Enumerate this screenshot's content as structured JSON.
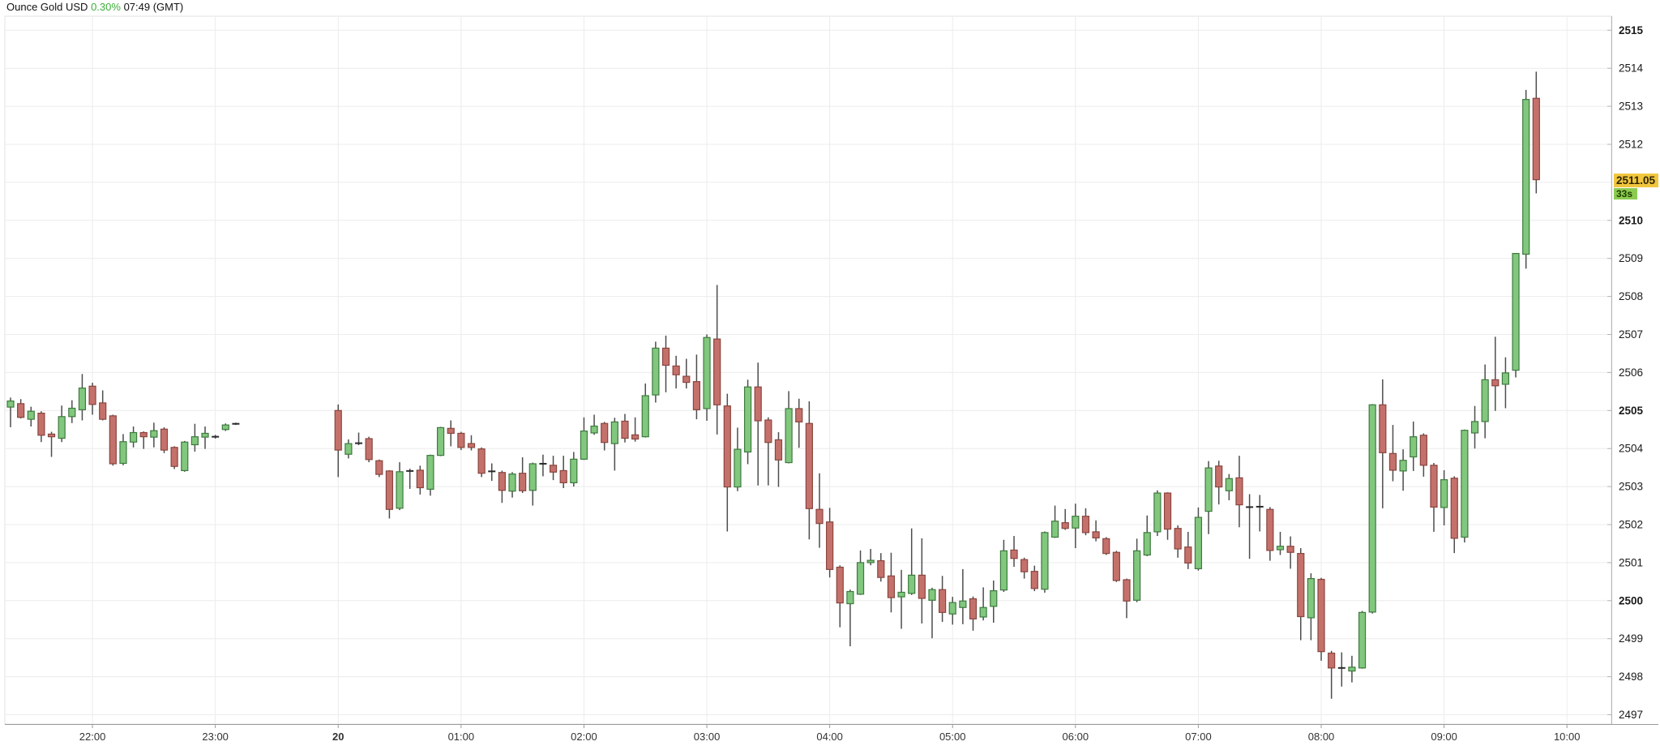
{
  "header": {
    "instrument": "Ounce Gold USD",
    "change_percent": "0.30%",
    "time": "07:49 (GMT)"
  },
  "price_axis": {
    "labels": [
      2515,
      2514,
      2513,
      2512,
      2510,
      2509,
      2508,
      2507,
      2506,
      2505,
      2504,
      2503,
      2502,
      2501,
      2500,
      2499,
      2498,
      2497
    ],
    "bold_labels": [
      2515,
      2510,
      2505,
      2500
    ],
    "grid_levels": [
      2497,
      2498,
      2499,
      2500,
      2501,
      2502,
      2503,
      2504,
      2505,
      2506,
      2507,
      2508,
      2509,
      2510,
      2511,
      2512,
      2513,
      2514,
      2515
    ],
    "current_price_label": "2511.05",
    "current_price": 2511.05,
    "countdown_label": "33s"
  },
  "time_axis": {
    "labels": [
      {
        "time": "22:00",
        "label": "22:00",
        "bold": false
      },
      {
        "time": "23:00",
        "label": "23:00",
        "bold": false
      },
      {
        "time": "00:00",
        "label": "20",
        "bold": true
      },
      {
        "time": "01:00",
        "label": "01:00",
        "bold": false
      },
      {
        "time": "02:00",
        "label": "02:00",
        "bold": false
      },
      {
        "time": "03:00",
        "label": "03:00",
        "bold": false
      },
      {
        "time": "04:00",
        "label": "04:00",
        "bold": false
      },
      {
        "time": "05:00",
        "label": "05:00",
        "bold": false
      },
      {
        "time": "06:00",
        "label": "06:00",
        "bold": false
      },
      {
        "time": "07:00",
        "label": "07:00",
        "bold": false
      },
      {
        "time": "08:00",
        "label": "08:00",
        "bold": false
      },
      {
        "time": "09:00",
        "label": "09:00",
        "bold": false
      },
      {
        "time": "10:00",
        "label": "10:00",
        "bold": false
      }
    ]
  },
  "colors": {
    "up_fill": "#81c77e",
    "up_stroke": "#3f7a3f",
    "down_fill": "#c5716b",
    "down_stroke": "#8a453f",
    "wick": "#4d4d4d",
    "doji": "#2a2a2a",
    "grid": "#ececec",
    "frame": "#e3e3e3",
    "axis_line": "#b5b5b5",
    "bottom_axis": "#9a9a9a",
    "price_label": "#1a1a1a",
    "time_label": "#333333",
    "badge_price_bg": "#f1c63d",
    "badge_price_text": "#2e2500",
    "badge_countdown_bg": "#8bcb50",
    "badge_countdown_text": "#1d3d00",
    "title_change": "#3daf3a"
  },
  "chart_data": {
    "type": "candlestick",
    "title": "Ounce Gold USD 5-minute candles",
    "ylim": [
      2496.7,
      2515.4
    ],
    "x_start": "21:20",
    "x_end": "10:00",
    "interval_minutes": 5,
    "session_gap": {
      "after": "23:10",
      "resume": "00:00"
    },
    "candles": [
      [
        "21:20",
        2505.09,
        2505.34,
        2504.56,
        2505.25
      ],
      [
        "21:25",
        2505.18,
        2505.3,
        2504.79,
        2504.82
      ],
      [
        "21:30",
        2504.77,
        2505.1,
        2504.58,
        2504.98
      ],
      [
        "21:35",
        2504.93,
        2504.98,
        2504.17,
        2504.35
      ],
      [
        "21:40",
        2504.38,
        2504.44,
        2503.78,
        2504.31
      ],
      [
        "21:45",
        2504.27,
        2505.13,
        2504.17,
        2504.84
      ],
      [
        "21:50",
        2504.84,
        2505.27,
        2504.67,
        2505.06
      ],
      [
        "21:55",
        2505.02,
        2505.96,
        2504.74,
        2505.59
      ],
      [
        "22:00",
        2505.64,
        2505.73,
        2504.89,
        2505.16
      ],
      [
        "22:05",
        2505.2,
        2505.53,
        2504.74,
        2504.77
      ],
      [
        "22:10",
        2504.86,
        2504.89,
        2503.55,
        2503.6
      ],
      [
        "22:15",
        2503.61,
        2504.38,
        2503.56,
        2504.18
      ],
      [
        "22:20",
        2504.17,
        2504.58,
        2504.03,
        2504.42
      ],
      [
        "22:25",
        2504.42,
        2504.45,
        2503.99,
        2504.31
      ],
      [
        "22:30",
        2504.3,
        2504.68,
        2504.03,
        2504.47
      ],
      [
        "22:35",
        2504.51,
        2504.56,
        2503.88,
        2503.96
      ],
      [
        "22:40",
        2504.03,
        2504.06,
        2503.46,
        2503.53
      ],
      [
        "22:45",
        2503.42,
        2504.2,
        2503.39,
        2504.17
      ],
      [
        "22:50",
        2504.1,
        2504.65,
        2503.92,
        2504.31
      ],
      [
        "22:55",
        2504.3,
        2504.58,
        2503.99,
        2504.4
      ],
      [
        "23:00",
        2504.31,
        2504.36,
        2504.26,
        2504.31
      ],
      [
        "23:05",
        2504.5,
        2504.66,
        2504.46,
        2504.62
      ],
      [
        "23:10",
        2504.65,
        2504.68,
        2504.62,
        2504.65
      ],
      [
        "00:00",
        2505.0,
        2505.16,
        2503.25,
        2503.96
      ],
      [
        "00:05",
        2503.85,
        2504.24,
        2503.74,
        2504.13
      ],
      [
        "00:10",
        2504.14,
        2504.42,
        2504.09,
        2504.18
      ],
      [
        "00:15",
        2504.26,
        2504.31,
        2503.64,
        2503.71
      ],
      [
        "00:20",
        2503.68,
        2503.71,
        2503.25,
        2503.32
      ],
      [
        "00:25",
        2503.41,
        2503.43,
        2502.16,
        2502.4
      ],
      [
        "00:30",
        2502.43,
        2503.64,
        2502.38,
        2503.39
      ],
      [
        "00:35",
        2503.41,
        2503.47,
        2502.94,
        2503.41
      ],
      [
        "00:40",
        2503.43,
        2503.55,
        2502.79,
        2502.97
      ],
      [
        "00:45",
        2502.93,
        2503.84,
        2502.76,
        2503.82
      ],
      [
        "00:50",
        2503.82,
        2504.57,
        2503.8,
        2504.55
      ],
      [
        "00:55",
        2504.53,
        2504.74,
        2504.06,
        2504.4
      ],
      [
        "01:00",
        2504.4,
        2504.44,
        2503.96,
        2504.03
      ],
      [
        "01:05",
        2504.13,
        2504.35,
        2503.95,
        2504.03
      ],
      [
        "01:10",
        2503.99,
        2504.03,
        2503.25,
        2503.35
      ],
      [
        "01:15",
        2503.4,
        2503.61,
        2503.15,
        2503.38
      ],
      [
        "01:20",
        2503.37,
        2503.42,
        2502.57,
        2502.9
      ],
      [
        "01:25",
        2502.88,
        2503.38,
        2502.71,
        2503.33
      ],
      [
        "01:30",
        2503.35,
        2503.77,
        2502.83,
        2502.89
      ],
      [
        "01:35",
        2502.9,
        2503.63,
        2502.5,
        2503.6
      ],
      [
        "01:40",
        2503.6,
        2503.84,
        2503.27,
        2503.62
      ],
      [
        "01:45",
        2503.56,
        2503.81,
        2503.17,
        2503.38
      ],
      [
        "01:50",
        2503.42,
        2503.81,
        2502.96,
        2503.1
      ],
      [
        "01:55",
        2503.1,
        2503.91,
        2503.0,
        2503.72
      ],
      [
        "02:00",
        2503.72,
        2504.82,
        2503.7,
        2504.46
      ],
      [
        "02:05",
        2504.41,
        2504.89,
        2504.36,
        2504.59
      ],
      [
        "02:10",
        2504.66,
        2504.7,
        2503.95,
        2504.16
      ],
      [
        "02:15",
        2504.13,
        2504.81,
        2503.42,
        2504.7
      ],
      [
        "02:20",
        2504.72,
        2504.91,
        2504.16,
        2504.27
      ],
      [
        "02:25",
        2504.36,
        2504.82,
        2504.18,
        2504.25
      ],
      [
        "02:30",
        2504.31,
        2505.71,
        2504.29,
        2505.39
      ],
      [
        "02:35",
        2505.41,
        2506.81,
        2505.21,
        2506.64
      ],
      [
        "02:40",
        2506.64,
        2506.97,
        2505.48,
        2506.19
      ],
      [
        "02:45",
        2506.17,
        2506.44,
        2505.58,
        2505.94
      ],
      [
        "02:50",
        2505.9,
        2506.36,
        2505.58,
        2505.74
      ],
      [
        "02:55",
        2505.76,
        2506.47,
        2504.77,
        2505.02
      ],
      [
        "03:00",
        2505.05,
        2507.0,
        2504.73,
        2506.92
      ],
      [
        "03:05",
        2506.88,
        2508.3,
        2504.37,
        2505.15
      ],
      [
        "03:10",
        2505.12,
        2505.44,
        2501.82,
        2502.99
      ],
      [
        "03:15",
        2502.99,
        2504.55,
        2502.88,
        2503.98
      ],
      [
        "03:20",
        2503.91,
        2505.81,
        2503.59,
        2505.62
      ],
      [
        "03:25",
        2505.62,
        2506.26,
        2503.03,
        2504.73
      ],
      [
        "03:30",
        2504.75,
        2504.82,
        2503.03,
        2504.16
      ],
      [
        "03:35",
        2504.23,
        2504.43,
        2502.99,
        2503.7
      ],
      [
        "03:40",
        2503.63,
        2505.51,
        2503.61,
        2505.05
      ],
      [
        "03:45",
        2505.05,
        2505.31,
        2504.02,
        2504.7
      ],
      [
        "03:50",
        2504.66,
        2505.24,
        2501.61,
        2502.42
      ],
      [
        "03:55",
        2502.4,
        2503.35,
        2501.39,
        2502.03
      ],
      [
        "04:00",
        2502.07,
        2502.44,
        2500.61,
        2500.82
      ],
      [
        "04:05",
        2500.88,
        2500.93,
        2499.3,
        2499.94
      ],
      [
        "04:10",
        2499.92,
        2500.29,
        2498.8,
        2500.24
      ],
      [
        "04:15",
        2500.17,
        2501.32,
        2500.15,
        2501.0
      ],
      [
        "04:20",
        2501.0,
        2501.36,
        2500.93,
        2501.06
      ],
      [
        "04:25",
        2501.05,
        2501.25,
        2500.5,
        2500.61
      ],
      [
        "04:30",
        2500.65,
        2501.26,
        2499.69,
        2500.08
      ],
      [
        "04:35",
        2500.1,
        2500.81,
        2499.26,
        2500.22
      ],
      [
        "04:40",
        2500.19,
        2501.9,
        2500.15,
        2500.67
      ],
      [
        "04:45",
        2500.67,
        2501.64,
        2499.4,
        2500.06
      ],
      [
        "04:50",
        2500.01,
        2500.34,
        2499.01,
        2500.29
      ],
      [
        "04:55",
        2500.29,
        2500.65,
        2499.44,
        2499.69
      ],
      [
        "05:00",
        2499.65,
        2500.1,
        2499.37,
        2499.95
      ],
      [
        "05:05",
        2499.82,
        2500.83,
        2499.38,
        2499.99
      ],
      [
        "05:10",
        2500.05,
        2500.11,
        2499.21,
        2499.52
      ],
      [
        "05:15",
        2499.57,
        2500.35,
        2499.48,
        2499.82
      ],
      [
        "05:20",
        2499.85,
        2500.53,
        2499.42,
        2500.26
      ],
      [
        "05:25",
        2500.28,
        2501.6,
        2500.23,
        2501.31
      ],
      [
        "05:30",
        2501.33,
        2501.7,
        2500.89,
        2501.11
      ],
      [
        "05:35",
        2501.08,
        2501.13,
        2500.58,
        2500.76
      ],
      [
        "05:40",
        2500.77,
        2500.92,
        2500.25,
        2500.32
      ],
      [
        "05:45",
        2500.3,
        2501.82,
        2500.21,
        2501.79
      ],
      [
        "05:50",
        2501.67,
        2502.5,
        2501.65,
        2502.09
      ],
      [
        "05:55",
        2502.05,
        2502.41,
        2501.86,
        2501.9
      ],
      [
        "06:00",
        2501.91,
        2502.55,
        2501.38,
        2502.22
      ],
      [
        "06:05",
        2502.22,
        2502.43,
        2501.72,
        2501.79
      ],
      [
        "06:10",
        2501.81,
        2502.11,
        2501.56,
        2501.65
      ],
      [
        "06:15",
        2501.63,
        2501.67,
        2501.2,
        2501.24
      ],
      [
        "06:20",
        2501.27,
        2501.31,
        2500.49,
        2500.53
      ],
      [
        "06:25",
        2500.55,
        2500.58,
        2499.54,
        2499.99
      ],
      [
        "06:30",
        2500.01,
        2501.63,
        2499.96,
        2501.31
      ],
      [
        "06:35",
        2501.2,
        2502.24,
        2501.17,
        2501.79
      ],
      [
        "06:40",
        2501.81,
        2502.9,
        2501.7,
        2502.83
      ],
      [
        "06:45",
        2502.83,
        2502.85,
        2501.6,
        2501.88
      ],
      [
        "06:50",
        2501.9,
        2501.98,
        2501.13,
        2501.36
      ],
      [
        "06:55",
        2501.41,
        2501.81,
        2500.83,
        2500.99
      ],
      [
        "07:00",
        2500.84,
        2502.45,
        2500.79,
        2502.19
      ],
      [
        "07:05",
        2502.35,
        2503.67,
        2501.75,
        2503.49
      ],
      [
        "07:10",
        2503.54,
        2503.68,
        2502.53,
        2502.99
      ],
      [
        "07:15",
        2502.89,
        2503.33,
        2502.64,
        2503.21
      ],
      [
        "07:20",
        2503.23,
        2503.81,
        2501.93,
        2502.52
      ],
      [
        "07:25",
        2502.46,
        2502.8,
        2501.1,
        2502.46
      ],
      [
        "07:30",
        2502.47,
        2502.78,
        2501.82,
        2502.47
      ],
      [
        "07:35",
        2502.4,
        2502.46,
        2501.05,
        2501.32
      ],
      [
        "07:40",
        2501.34,
        2501.81,
        2501.2,
        2501.43
      ],
      [
        "07:45",
        2501.43,
        2501.69,
        2500.84,
        2501.27
      ],
      [
        "07:50",
        2501.24,
        2501.38,
        2498.96,
        2499.58
      ],
      [
        "07:55",
        2499.55,
        2500.72,
        2498.96,
        2500.58
      ],
      [
        "08:00",
        2500.56,
        2500.6,
        2498.42,
        2498.66
      ],
      [
        "08:05",
        2498.62,
        2498.68,
        2497.42,
        2498.23
      ],
      [
        "08:10",
        2498.23,
        2498.64,
        2497.74,
        2498.23
      ],
      [
        "08:15",
        2498.15,
        2498.55,
        2497.85,
        2498.25
      ],
      [
        "08:20",
        2498.23,
        2499.73,
        2498.21,
        2499.69
      ],
      [
        "08:25",
        2499.7,
        2505.17,
        2499.66,
        2505.15
      ],
      [
        "08:30",
        2505.15,
        2505.82,
        2502.43,
        2503.89
      ],
      [
        "08:35",
        2503.87,
        2504.62,
        2503.14,
        2503.43
      ],
      [
        "08:40",
        2503.41,
        2503.98,
        2502.89,
        2503.69
      ],
      [
        "08:45",
        2503.78,
        2504.71,
        2503.41,
        2504.31
      ],
      [
        "08:50",
        2504.35,
        2504.4,
        2503.26,
        2503.56
      ],
      [
        "08:55",
        2503.56,
        2503.62,
        2501.81,
        2502.46
      ],
      [
        "09:00",
        2502.45,
        2503.43,
        2501.98,
        2503.18
      ],
      [
        "09:05",
        2503.22,
        2503.27,
        2501.25,
        2501.64
      ],
      [
        "09:10",
        2501.67,
        2504.5,
        2501.53,
        2504.48
      ],
      [
        "09:15",
        2504.41,
        2505.12,
        2504.0,
        2504.71
      ],
      [
        "09:20",
        2504.71,
        2506.21,
        2504.27,
        2505.81
      ],
      [
        "09:25",
        2505.81,
        2506.94,
        2504.99,
        2505.65
      ],
      [
        "09:30",
        2505.69,
        2506.4,
        2505.06,
        2505.99
      ],
      [
        "09:35",
        2506.06,
        2509.14,
        2505.87,
        2509.13
      ],
      [
        "09:40",
        2509.11,
        2513.43,
        2508.73,
        2513.18
      ],
      [
        "09:45",
        2513.21,
        2513.91,
        2510.71,
        2511.07
      ]
    ]
  }
}
